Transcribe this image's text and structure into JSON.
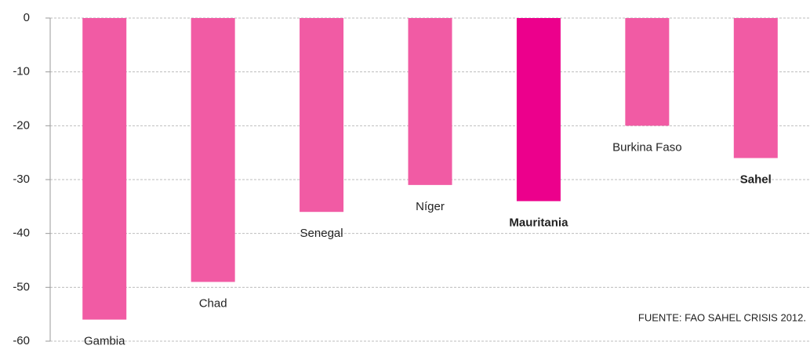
{
  "chart_data": {
    "type": "bar",
    "categories": [
      "Gambia",
      "Chad",
      "Senegal",
      "Níger",
      "Mauritania",
      "Burkina Faso",
      "Sahel"
    ],
    "values": [
      -56,
      -49,
      -36,
      -31,
      -34,
      -20,
      -26
    ],
    "colors": [
      "#f15ba4",
      "#f15ba4",
      "#f15ba4",
      "#f15ba4",
      "#ec008c",
      "#f15ba4",
      "#f15ba4"
    ],
    "bold": [
      false,
      false,
      false,
      false,
      true,
      false,
      true
    ],
    "ylim": [
      -60,
      0
    ],
    "yticks": [
      0,
      -10,
      -20,
      -30,
      -40,
      -50,
      -60
    ],
    "grid": true,
    "annotation": "FUENTE: FAO SAHEL CRISIS 2012."
  }
}
